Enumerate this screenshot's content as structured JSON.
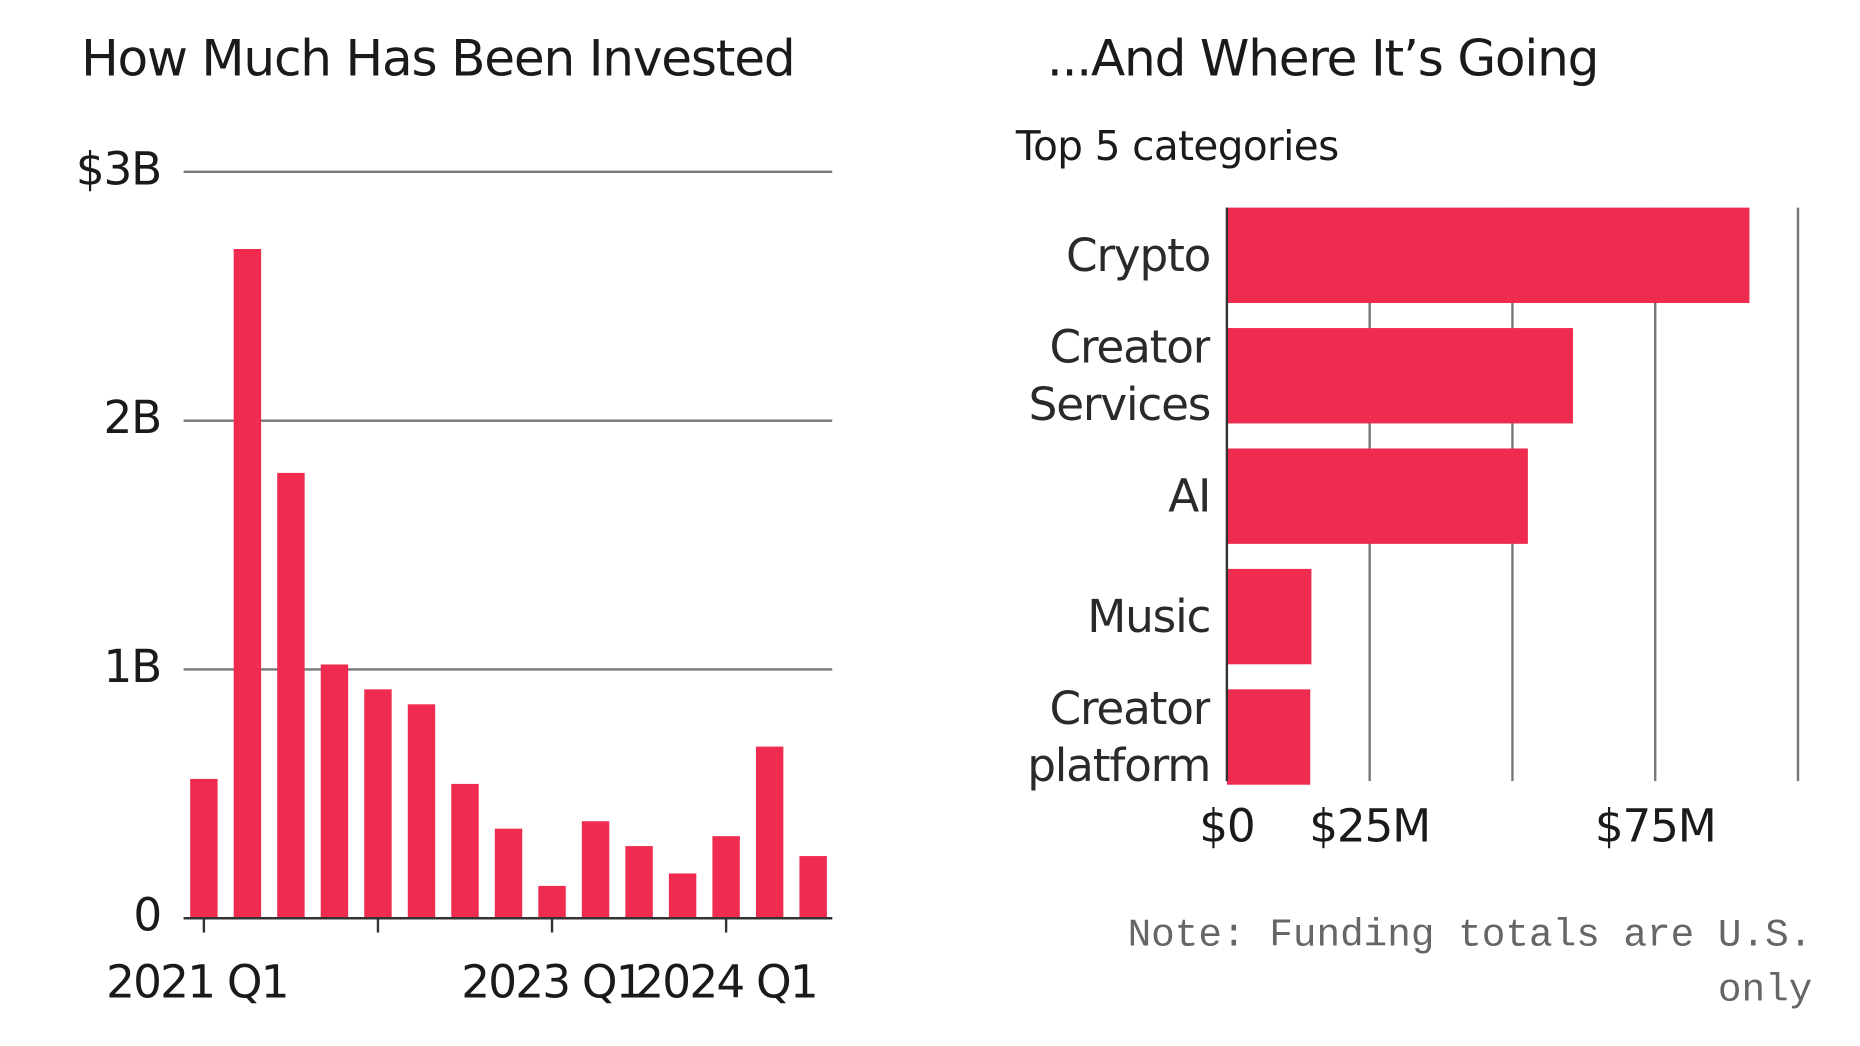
{
  "chart_data": [
    {
      "type": "bar",
      "title": "How Much Has Been Invested",
      "categories": [
        "2021 Q1",
        null,
        null,
        null,
        null,
        null,
        null,
        null,
        "2023 Q1",
        null,
        null,
        null,
        "2024 Q1",
        null,
        null
      ],
      "values": [
        0.56,
        2.69,
        1.79,
        1.02,
        0.92,
        0.86,
        0.54,
        0.36,
        0.13,
        0.39,
        0.29,
        0.18,
        0.33,
        0.69,
        0.25
      ],
      "color": "#ef2b4f",
      "ylim": [
        0,
        3
      ],
      "yticks": [
        0,
        {
          "value": 1,
          "label": "1B"
        },
        {
          "value": 2,
          "label": "2B"
        },
        {
          "value": 3,
          "label": "$3B"
        }
      ],
      "grid": true
    },
    {
      "type": "hbar",
      "title": "...And Where It’s Going",
      "subtitle": "Top 5 categories",
      "categories": [
        "Crypto",
        "Creator Services",
        "AI",
        "Music",
        "Creator platform"
      ],
      "values": [
        91.5,
        60.6,
        52.7,
        14.8,
        14.6
      ],
      "color": "#ef2b4f",
      "xlim": [
        0,
        100
      ],
      "xticks": [
        {
          "value": 0,
          "label": "$0"
        },
        {
          "value": 25,
          "label": "$25M"
        },
        {
          "value": 75,
          "label": "$75M"
        }
      ],
      "xgrid": [
        25,
        50,
        75,
        100
      ],
      "note": "Note: Funding totals are U.S. only"
    }
  ]
}
